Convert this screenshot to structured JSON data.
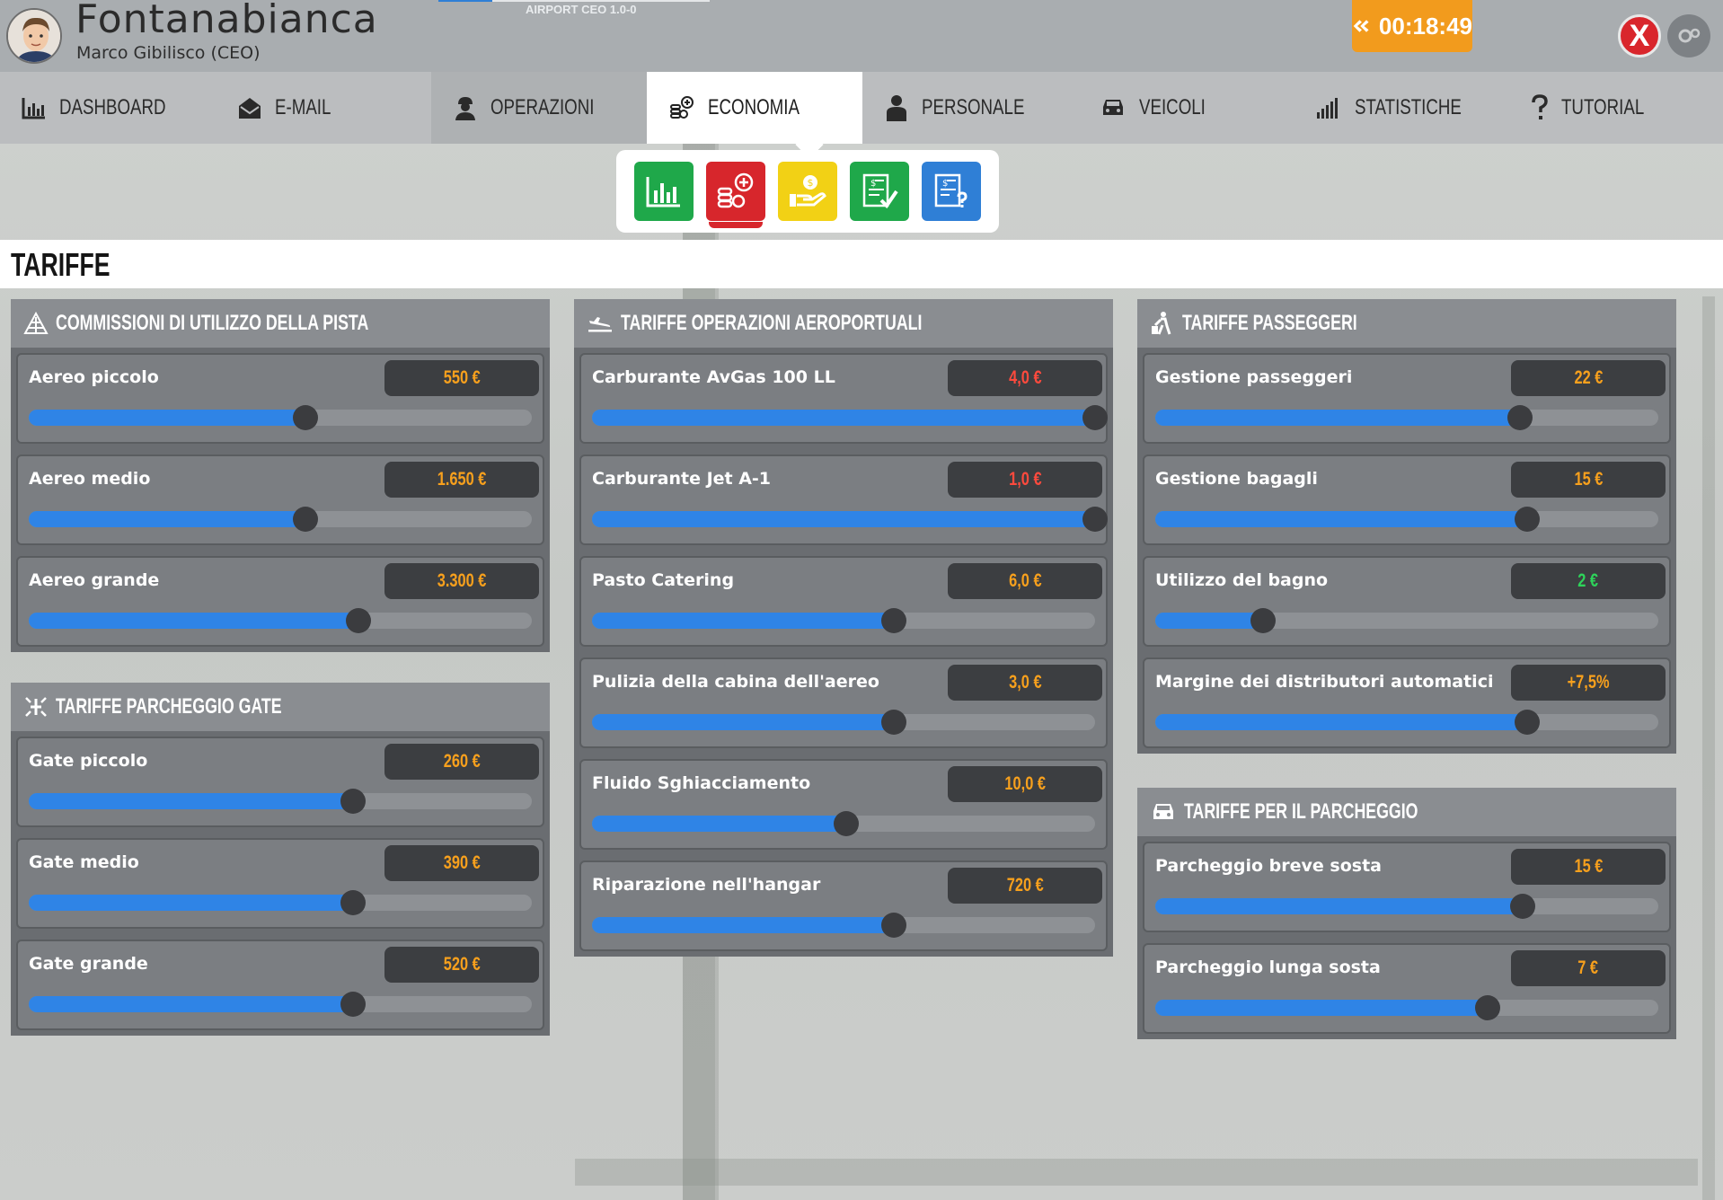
{
  "header": {
    "airport_name": "Fontanabianca",
    "ceo_name": "Marco Gibilisco (CEO)",
    "version": "AIRPORT CEO  1.0-0",
    "clock": "00:18:49",
    "close_label": "X"
  },
  "nav": {
    "items": [
      {
        "label": "DASHBOARD",
        "icon": "bar-chart-icon"
      },
      {
        "label": "E-MAIL",
        "icon": "envelope-icon"
      },
      {
        "label": "OPERAZIONI",
        "icon": "worker-icon"
      },
      {
        "label": "ECONOMIA",
        "icon": "coins-icon"
      },
      {
        "label": "PERSONALE",
        "icon": "person-icon"
      },
      {
        "label": "VEICOLI",
        "icon": "car-icon"
      },
      {
        "label": "STATISTICHE",
        "icon": "signal-bars-icon"
      },
      {
        "label": "TUTORIAL",
        "icon": "question-icon"
      }
    ],
    "active": "ECONOMIA"
  },
  "subtoolbar": {
    "buttons": [
      {
        "name": "overview",
        "icon": "bar-chart-icon",
        "color": "#1fa84a"
      },
      {
        "name": "fees",
        "icon": "coins-plus-icon",
        "color": "#d7262c"
      },
      {
        "name": "loans",
        "icon": "hand-money-icon",
        "color": "#f2d115"
      },
      {
        "name": "contracts",
        "icon": "document-check-icon",
        "color": "#1fa84a"
      },
      {
        "name": "reports",
        "icon": "document-question-icon",
        "color": "#2f7fd6"
      }
    ],
    "selected": "fees"
  },
  "page_title": "TARIFFE",
  "colors": {
    "accent_blue": "#2f84e6",
    "value_orange": "#f7a01d",
    "value_red": "#ff4a3d",
    "value_green": "#2ed35a",
    "clock_orange": "#f29b1d"
  },
  "panels": {
    "runway": {
      "title": "COMMISSIONI DI UTILIZZO DELLA PISTA",
      "icon": "runway-icon",
      "rows": [
        {
          "label": "Aereo piccolo",
          "value": "550 €",
          "color": "orange",
          "level": 0.55
        },
        {
          "label": "Aereo medio",
          "value": "1.650 €",
          "color": "orange",
          "level": 0.55
        },
        {
          "label": "Aereo grande",
          "value": "3.300 €",
          "color": "orange",
          "level": 0.655
        }
      ]
    },
    "gate": {
      "title": "TARIFFE PARCHEGGIO GATE",
      "icon": "gate-icon",
      "rows": [
        {
          "label": "Gate piccolo",
          "value": "260 €",
          "color": "orange",
          "level": 0.645
        },
        {
          "label": "Gate medio",
          "value": "390 €",
          "color": "orange",
          "level": 0.645
        },
        {
          "label": "Gate grande",
          "value": "520 €",
          "color": "orange",
          "level": 0.645
        }
      ]
    },
    "operations": {
      "title": "TARIFFE OPERAZIONI AEROPORTUALI",
      "icon": "plane-landing-icon",
      "rows": [
        {
          "label": "Carburante AvGas 100 LL",
          "value": "4,0 €",
          "color": "red",
          "level": 1.0
        },
        {
          "label": "Carburante Jet A-1",
          "value": "1,0 €",
          "color": "red",
          "level": 1.0
        },
        {
          "label": "Pasto Catering",
          "value": "6,0 €",
          "color": "orange",
          "level": 0.6
        },
        {
          "label": "Pulizia della cabina dell'aereo",
          "value": "3,0 €",
          "color": "orange",
          "level": 0.6
        },
        {
          "label": "Fluido Sghiacciamento",
          "value": "10,0 €",
          "color": "orange",
          "level": 0.505
        },
        {
          "label": "Riparazione nell'hangar",
          "value": "720 €",
          "color": "orange",
          "level": 0.6
        }
      ]
    },
    "passengers": {
      "title": "TARIFFE PASSEGGERI",
      "icon": "passenger-icon",
      "rows": [
        {
          "label": "Gestione passeggeri",
          "value": "22 €",
          "color": "orange",
          "level": 0.725
        },
        {
          "label": "Gestione bagagli",
          "value": "15 €",
          "color": "orange",
          "level": 0.74
        },
        {
          "label": "Utilizzo del bagno",
          "value": "2 €",
          "color": "green",
          "level": 0.215
        },
        {
          "label": "Margine dei distributori automatici",
          "value": "+7,5%",
          "color": "orange",
          "level": 0.74
        }
      ]
    },
    "parking": {
      "title": "TARIFFE PER IL PARCHEGGIO",
      "icon": "car-icon",
      "rows": [
        {
          "label": "Parcheggio breve sosta",
          "value": "15 €",
          "color": "orange",
          "level": 0.73
        },
        {
          "label": "Parcheggio lunga sosta",
          "value": "7 €",
          "color": "orange",
          "level": 0.66
        }
      ]
    }
  }
}
